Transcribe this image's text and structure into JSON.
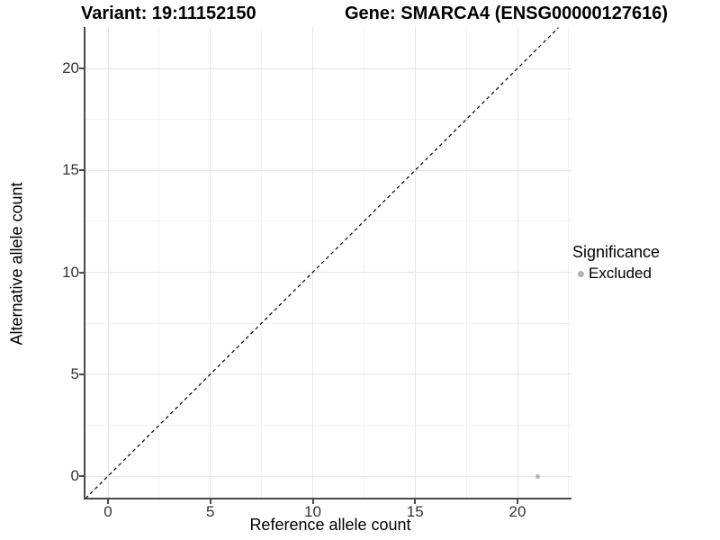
{
  "chart_data": {
    "type": "scatter",
    "title_left": "Variant: 19:11152150",
    "title_right": "Gene: SMARCA4 (ENSG00000127616)",
    "xlabel": "Reference allele count",
    "ylabel": "Alternative allele count",
    "x_ticks": [
      0,
      5,
      10,
      15,
      20
    ],
    "y_ticks": [
      0,
      5,
      10,
      15,
      20
    ],
    "x_minor_ticks": [
      2.5,
      7.5,
      12.5,
      17.5,
      22.5
    ],
    "y_minor_ticks": [
      2.5,
      7.5,
      12.5,
      17.5
    ],
    "xlim": [
      -1.1,
      22.7
    ],
    "ylim": [
      -1.1,
      22.0
    ],
    "grid": true,
    "identity_line": {
      "slope": 1,
      "intercept": 0,
      "style": "dashed",
      "color": "#000000"
    },
    "series": [
      {
        "name": "Excluded",
        "color": "#b3b3b3",
        "points": [
          {
            "x": 21,
            "y": 0
          }
        ]
      }
    ],
    "legend": {
      "title": "Significance",
      "position": "right",
      "items": [
        {
          "label": "Excluded",
          "color": "#b3b3b3"
        }
      ]
    },
    "style": {
      "grid_major": "#e5e5e5",
      "grid_minor": "#f2f2f2",
      "axis_color": "#4a4a4a",
      "tick_text_color": "#333333",
      "point_color": "#b3b3b3"
    }
  }
}
